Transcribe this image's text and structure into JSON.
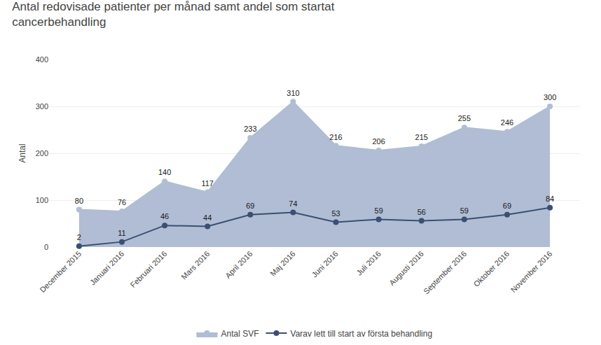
{
  "chart_data": {
    "type": "line",
    "title": "Antal redovisade patienter per månad samt andel som startat\ncancerbehandling",
    "ylabel": "Antal",
    "categories": [
      "December 2015",
      "Januari 2016",
      "Februari 2016",
      "Mars 2016",
      "April 2016",
      "Maj 2016",
      "Juni 2016",
      "Juli 2016",
      "Augusti 2016",
      "September 2016",
      "Oktober 2016",
      "November 2016"
    ],
    "series": [
      {
        "name": "Antal SVF",
        "type": "area",
        "color": "#b0bdd4",
        "values": [
          80,
          76,
          140,
          117,
          233,
          310,
          216,
          206,
          215,
          255,
          246,
          300
        ]
      },
      {
        "name": "Varav lett till start av första behandling",
        "type": "line",
        "color": "#3a4f72",
        "values": [
          2,
          11,
          46,
          44,
          69,
          74,
          53,
          59,
          56,
          59,
          69,
          84
        ]
      }
    ],
    "ylim": [
      0,
      400
    ],
    "yticks": [
      0,
      100,
      200,
      300,
      400
    ],
    "grid": true,
    "legend": "bottom",
    "data_labels": true,
    "marker": "circle"
  }
}
